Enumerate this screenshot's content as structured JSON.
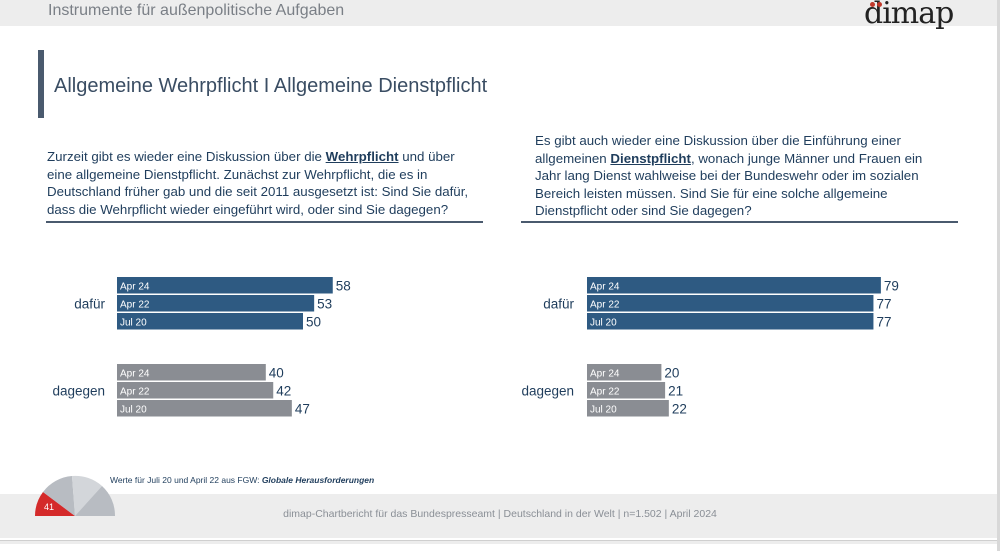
{
  "header": {
    "title": "Instrumente für außenpolitische Aufgaben",
    "logo": "dimap",
    "colors": {
      "accent_dot": "#c0392b"
    }
  },
  "page": {
    "title": "Allgemeine Wehrpflicht I Allgemeine Dienstpflicht"
  },
  "left": {
    "q_pre": "Zurzeit gibt es wieder eine Diskussion über die ",
    "q_keyword": "Wehrpflicht",
    "q_post": " und über eine allgemeine Dienstpflicht. Zunächst zur Wehrpflicht, die es in Deutschland früher gab und die seit 2011 ausgesetzt ist: Sind Sie dafür, dass die Wehrpflicht wieder eingeführt wird, oder sind Sie dagegen?"
  },
  "right": {
    "q_pre": "Es gibt auch wieder eine Diskussion über die Einführung einer allgemeinen ",
    "q_keyword": "Dienstpflicht",
    "q_post": ", wonach junge Männer und Frauen ein Jahr lang Dienst wahlweise bei der Bundeswehr oder im sozialen Bereich leisten müssen. Sind Sie für eine solche allgemeine Dienstpflicht oder sind Sie dagegen?"
  },
  "chart_data": [
    {
      "type": "bar",
      "orientation": "horizontal",
      "title": "Wehrpflicht",
      "categories": [
        "dafür",
        "dagegen"
      ],
      "series_labels": [
        "Apr 24",
        "Apr 22",
        "Jul 20"
      ],
      "values": {
        "dafür": [
          58,
          53,
          50
        ],
        "dagegen": [
          40,
          42,
          47
        ]
      },
      "colors": {
        "dafür": "#2e5a82",
        "dagegen": "#8a8d93"
      }
    },
    {
      "type": "bar",
      "orientation": "horizontal",
      "title": "Dienstpflicht",
      "categories": [
        "dafür",
        "dagegen"
      ],
      "series_labels": [
        "Apr 24",
        "Apr 22",
        "Jul 20"
      ],
      "values": {
        "dafür": [
          79,
          77,
          77
        ],
        "dagegen": [
          20,
          21,
          22
        ]
      },
      "colors": {
        "dafür": "#2e5a82",
        "dagegen": "#8a8d93"
      }
    }
  ],
  "footnote": {
    "text": "Werte für Juli 20 und April 22 aus FGW: ",
    "source": "Globale Herausforderungen"
  },
  "footer": {
    "page_number": "41",
    "text": "dimap-Chartbericht für das Bundespresseamt  |  Deutschland in der Welt  |  n=1.502  |  April 2024"
  }
}
